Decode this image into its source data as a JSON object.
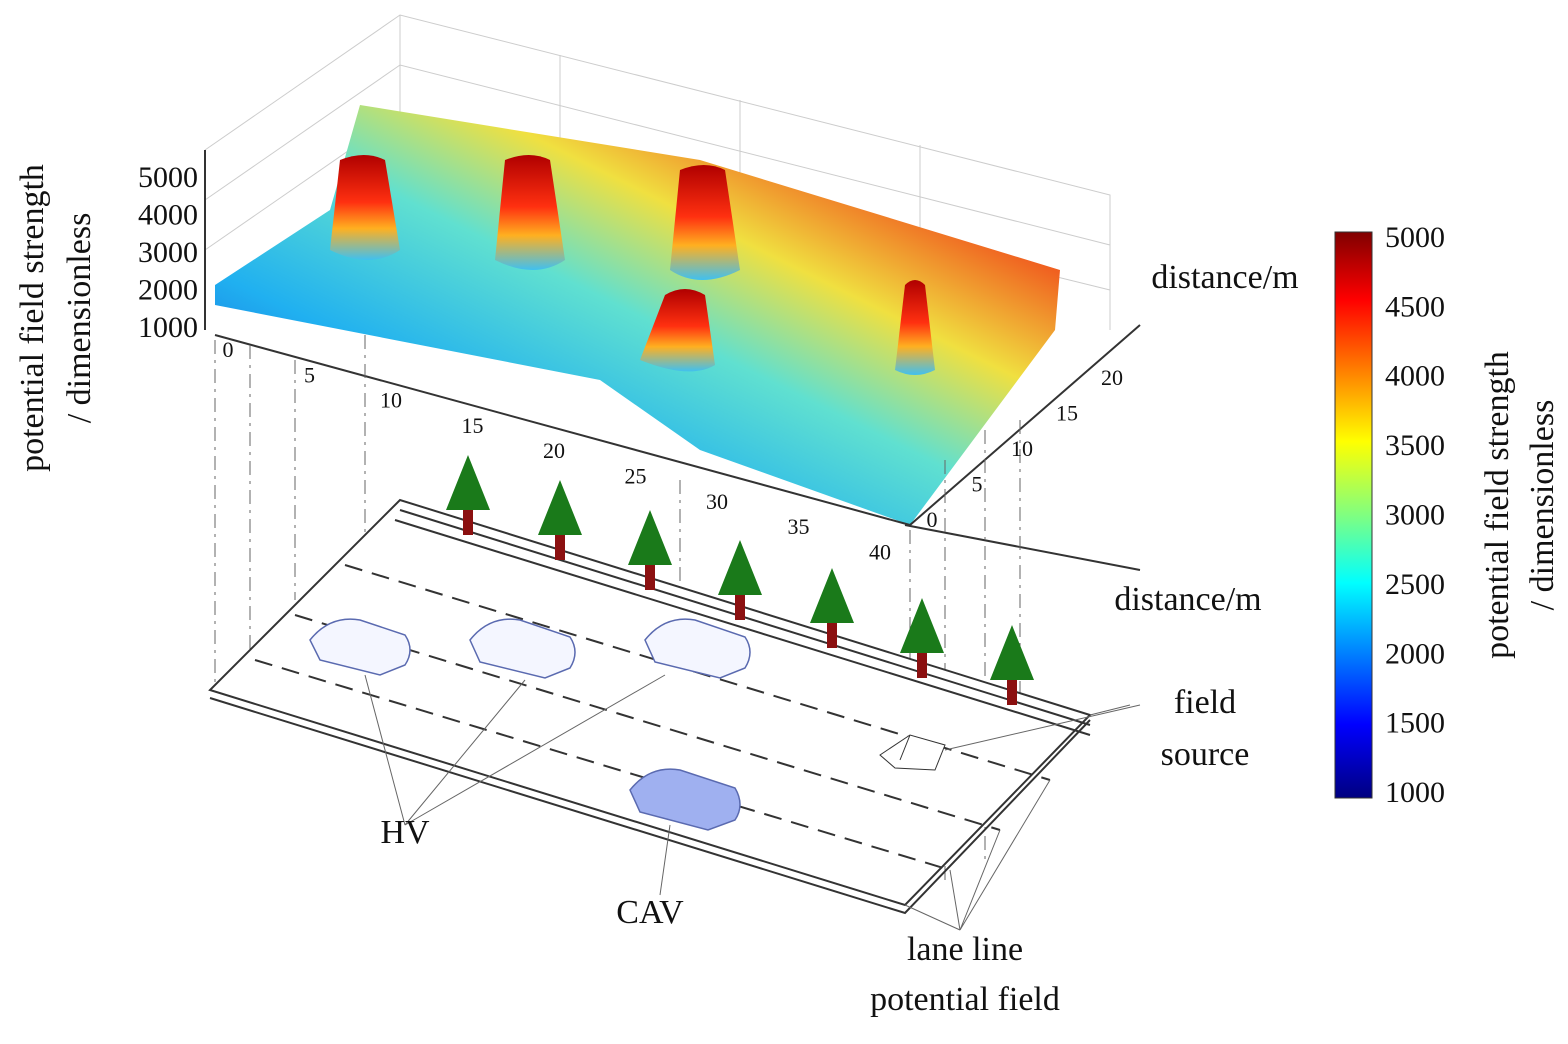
{
  "z_axis": {
    "title_line1": "potential field strength",
    "title_line2": "/ dimensionless",
    "ticks": [
      5000,
      4000,
      3000,
      2000,
      1000
    ]
  },
  "x_axis": {
    "ticks": [
      0,
      5,
      10,
      15,
      20,
      25,
      30,
      35,
      40
    ],
    "title": "distance/m"
  },
  "y_axis": {
    "ticks": [
      0,
      5,
      10,
      15,
      20
    ],
    "title": "distance/m"
  },
  "colorbar": {
    "ticks": [
      5000,
      4500,
      4000,
      3500,
      3000,
      2500,
      2000,
      1500,
      1000
    ],
    "title_line1": "potential field strength",
    "title_line2": "/ dimensionless"
  },
  "labels": {
    "field_source_line1": "field",
    "field_source_line2": "source",
    "hv": "HV",
    "cav": "CAV",
    "lane_line1": "lane line",
    "lane_line2": "potential field"
  }
}
